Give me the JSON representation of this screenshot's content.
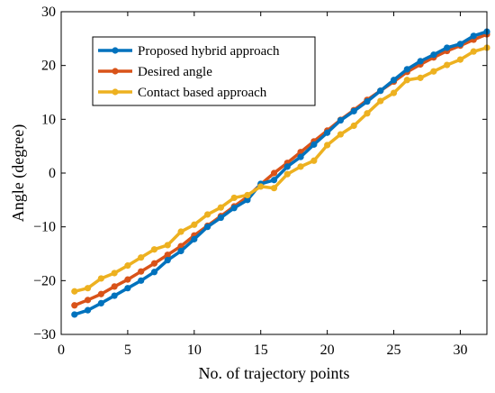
{
  "chart_data": {
    "type": "line",
    "title": "",
    "xlabel": "No. of trajectory points",
    "ylabel": "Angle (degree)",
    "xlim": [
      0,
      32
    ],
    "ylim": [
      -30,
      30
    ],
    "xticks": [
      0,
      5,
      10,
      15,
      20,
      25,
      30
    ],
    "yticks": [
      -30,
      -20,
      -10,
      0,
      10,
      20,
      30
    ],
    "xtick_labels": [
      "0",
      "5",
      "10",
      "15",
      "20",
      "25",
      "30"
    ],
    "ytick_labels": [
      "−30",
      "−20",
      "−10",
      "0",
      "10",
      "20",
      "30"
    ],
    "grid": false,
    "legend_position": "top-left",
    "x": [
      1,
      2,
      3,
      4,
      5,
      6,
      7,
      8,
      9,
      10,
      11,
      12,
      13,
      14,
      15,
      16,
      17,
      18,
      19,
      20,
      21,
      22,
      23,
      24,
      25,
      26,
      27,
      28,
      29,
      30,
      31,
      32
    ],
    "series": [
      {
        "name": "Proposed hybrid approach",
        "color": "#0072BD",
        "values": [
          -26.3,
          -25.5,
          -24.2,
          -22.8,
          -21.4,
          -20.0,
          -18.4,
          -16.2,
          -14.5,
          -12.3,
          -10.0,
          -8.3,
          -6.5,
          -5.0,
          -2.0,
          -1.3,
          1.2,
          3.0,
          5.3,
          7.5,
          9.8,
          11.5,
          13.3,
          15.3,
          17.3,
          19.3,
          20.8,
          22.0,
          23.3,
          24.0,
          25.5,
          26.3
        ]
      },
      {
        "name": "Desired angle",
        "color": "#D95319",
        "values": [
          -24.6,
          -23.6,
          -22.5,
          -21.1,
          -19.8,
          -18.3,
          -16.8,
          -15.2,
          -13.6,
          -11.6,
          -9.8,
          -8.0,
          -6.2,
          -4.4,
          -2.1,
          0.0,
          1.9,
          3.9,
          5.9,
          7.9,
          9.9,
          11.7,
          13.6,
          15.3,
          17.0,
          18.8,
          20.2,
          21.5,
          22.7,
          23.7,
          24.8,
          25.8
        ]
      },
      {
        "name": "Contact based approach",
        "color": "#EDB120",
        "values": [
          -22.0,
          -21.4,
          -19.6,
          -18.6,
          -17.2,
          -15.7,
          -14.2,
          -13.4,
          -10.9,
          -9.6,
          -7.7,
          -6.4,
          -4.6,
          -4.1,
          -2.5,
          -2.8,
          -0.2,
          1.2,
          2.3,
          5.2,
          7.2,
          8.8,
          11.1,
          13.4,
          14.9,
          17.3,
          17.7,
          18.9,
          20.1,
          21.1,
          22.6,
          23.3
        ]
      }
    ]
  }
}
